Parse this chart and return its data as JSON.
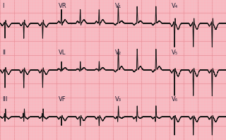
{
  "bg_color": "#f9b8c0",
  "grid_major_color": "#e8909a",
  "grid_minor_color": "#f2c8cc",
  "ecg_color": "#111111",
  "fig_width": 3.2,
  "fig_height": 1.98,
  "dpi": 100,
  "labels": {
    "row0": [
      "I",
      "VR",
      "V₁",
      "V₄"
    ],
    "row1": [
      "II",
      "VL",
      "V₂",
      "V₅"
    ],
    "row2": [
      "III",
      "VF",
      "V₃",
      "V₆"
    ]
  },
  "label_fontsize": 6,
  "ecg_linewidth": 0.7,
  "heart_rate": 72,
  "sample_rate": 500,
  "duration_per_lead": 2.5
}
